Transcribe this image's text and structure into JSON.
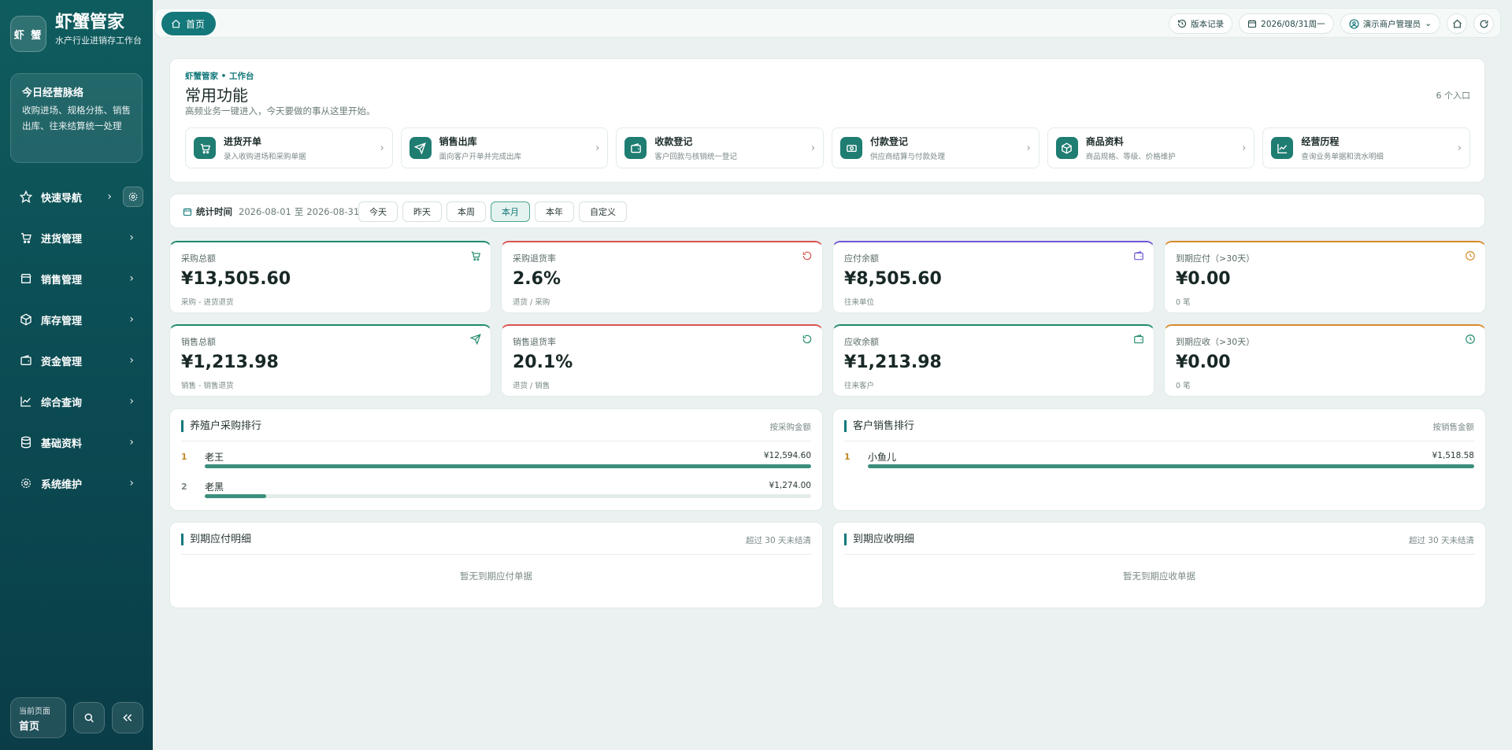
{
  "brand": {
    "logo_text": "虾 蟹",
    "title": "虾蟹管家",
    "subtitle": "水产行业进销存工作台"
  },
  "pulse": {
    "title": "今日经营脉络",
    "text": "收购进场、规格分拣、销售出库、往来结算统一处理"
  },
  "nav": [
    {
      "label": "快速导航",
      "icon": "star-icon"
    },
    {
      "label": "进货管理",
      "icon": "cart-icon"
    },
    {
      "label": "销售管理",
      "icon": "store-icon"
    },
    {
      "label": "库存管理",
      "icon": "box-icon"
    },
    {
      "label": "资金管理",
      "icon": "wallet-icon"
    },
    {
      "label": "综合查询",
      "icon": "chart-icon"
    },
    {
      "label": "基础资料",
      "icon": "database-icon"
    },
    {
      "label": "系统维护",
      "icon": "gear-icon"
    }
  ],
  "current_page": {
    "label": "当前页面",
    "value": "首页"
  },
  "topbar": {
    "home_tab": "首页",
    "version": "版本记录",
    "date": "2026/08/31周一",
    "user": "演示商户管理员"
  },
  "quick": {
    "kicker": "虾蟹管家 • 工作台",
    "title": "常用功能",
    "subtitle": "高频业务一键进入，今天要做的事从这里开始。",
    "count": "6 个入口",
    "tiles": [
      {
        "title": "进货开单",
        "desc": "录入收购进场和采购单据",
        "icon": "cart-icon"
      },
      {
        "title": "销售出库",
        "desc": "面向客户开单并完成出库",
        "icon": "send-icon"
      },
      {
        "title": "收款登记",
        "desc": "客户回款与核销统一登记",
        "icon": "wallet-icon"
      },
      {
        "title": "付款登记",
        "desc": "供应商结算与付款处理",
        "icon": "cash-icon"
      },
      {
        "title": "商品资料",
        "desc": "商品规格、等级、价格维护",
        "icon": "box-icon"
      },
      {
        "title": "经营历程",
        "desc": "查询业务单据和流水明细",
        "icon": "chart-icon"
      }
    ]
  },
  "filter": {
    "label": "统计时间",
    "range_start": "2026-08-01",
    "range_sep": "至",
    "range_end": "2026-08-31",
    "buttons": [
      "今天",
      "昨天",
      "本周",
      "本月",
      "本年",
      "自定义"
    ],
    "active": "本月"
  },
  "stats": [
    {
      "label": "采购总额",
      "value": "¥13,505.60",
      "sub": "采购 - 进货退货",
      "color": "#1f8a6b",
      "icon": "cart-icon"
    },
    {
      "label": "采购退货率",
      "value": "2.6%",
      "sub": "退货 / 采购",
      "color": "#d9534f",
      "icon": "refresh-icon"
    },
    {
      "label": "应付余额",
      "value": "¥8,505.60",
      "sub": "往来单位",
      "color": "#6f57d6",
      "icon": "wallet-icon"
    },
    {
      "label": "到期应付（>30天）",
      "value": "¥0.00",
      "sub": "0 笔",
      "color": "#d68a2a",
      "icon": "clock-icon"
    },
    {
      "label": "销售总额",
      "value": "¥1,213.98",
      "sub": "销售 - 销售退货",
      "color": "#1f8a6b",
      "icon": "send-icon"
    },
    {
      "label": "销售退货率",
      "value": "20.1%",
      "sub": "退货 / 销售",
      "color": "#d9534f",
      "icon": "refresh-icon"
    },
    {
      "label": "应收余额",
      "value": "¥1,213.98",
      "sub": "往来客户",
      "color": "#1f8a6b",
      "icon": "wallet-icon"
    },
    {
      "label": "到期应收（>30天）",
      "value": "¥0.00",
      "sub": "0 笔",
      "color": "#d68a2a",
      "icon": "clock-icon"
    }
  ],
  "purchase_rank": {
    "title": "养殖户采购排行",
    "hint": "按采购金额",
    "rows": [
      {
        "no": "1",
        "name": "老王",
        "amount": "¥12,594.60",
        "ratio": 1.0
      },
      {
        "no": "2",
        "name": "老黑",
        "amount": "¥1,274.00",
        "ratio": 0.101
      }
    ]
  },
  "sales_rank": {
    "title": "客户销售排行",
    "hint": "按销售金额",
    "rows": [
      {
        "no": "1",
        "name": "小鱼儿",
        "amount": "¥1,518.58",
        "ratio": 1.0
      }
    ]
  },
  "due_payable": {
    "title": "到期应付明细",
    "hint": "超过 30 天未结清",
    "empty": "暂无到期应付单据"
  },
  "due_receivable": {
    "title": "到期应收明细",
    "hint": "超过 30 天未结清",
    "empty": "暂无到期应收单据"
  }
}
